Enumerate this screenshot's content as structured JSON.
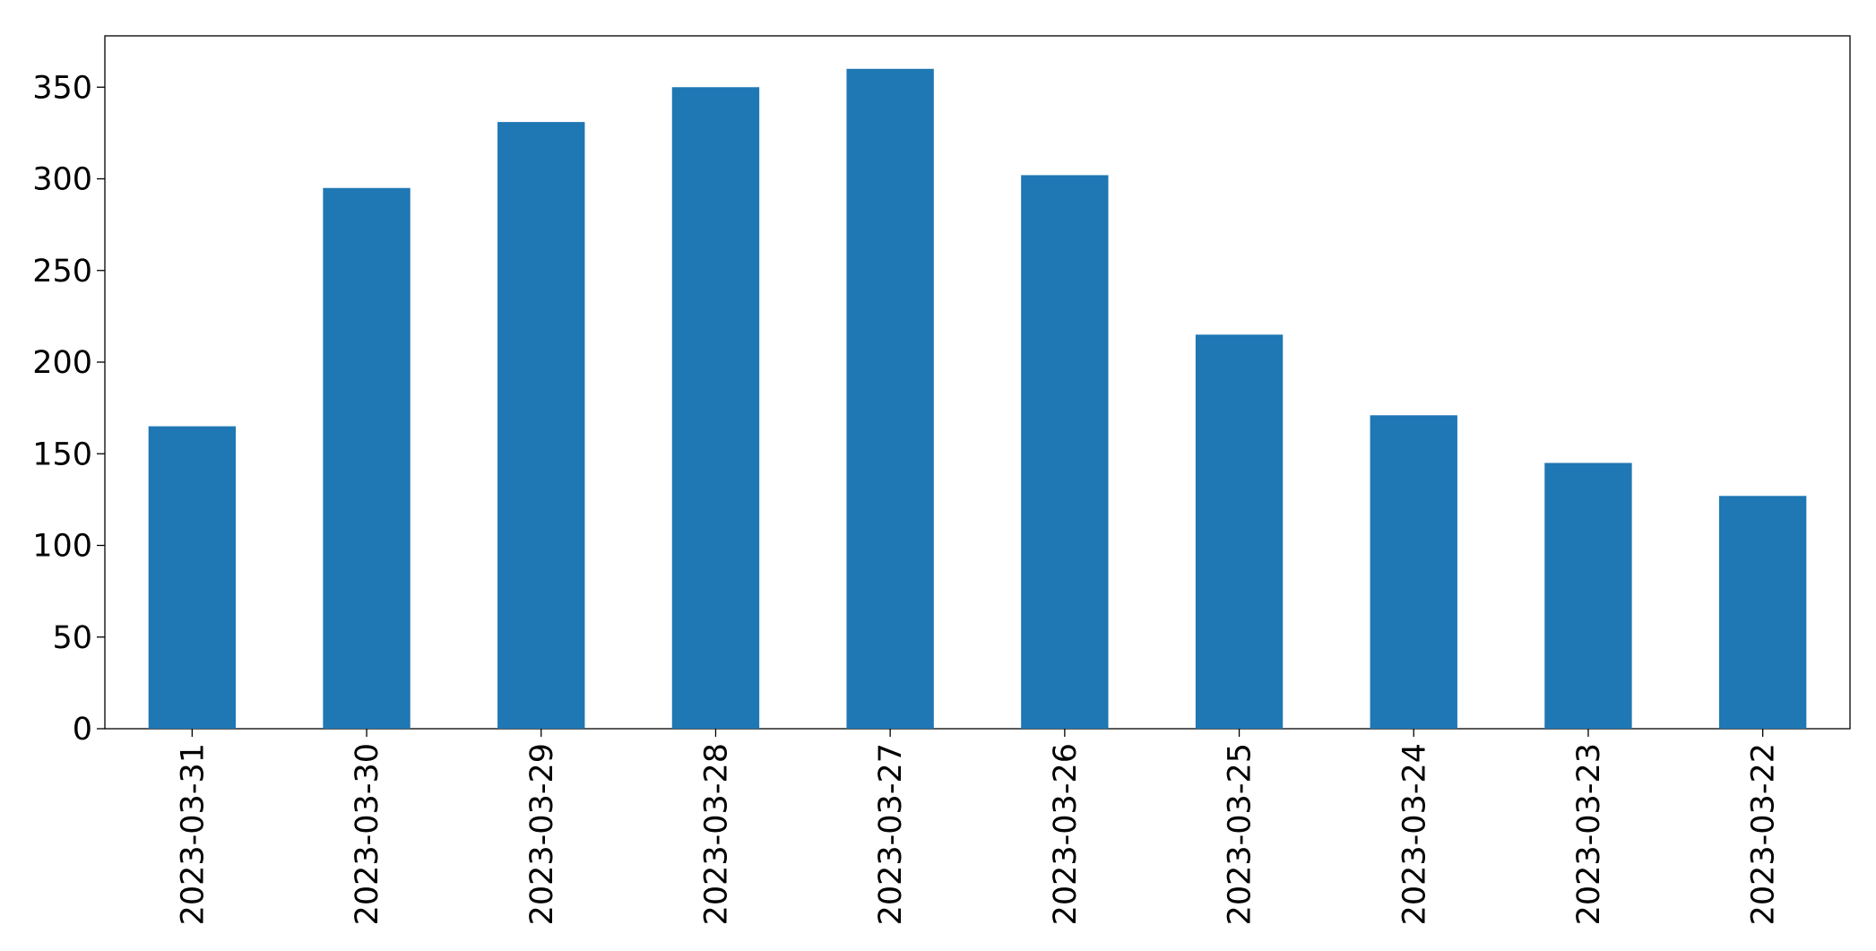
{
  "chart_data": {
    "type": "bar",
    "categories": [
      "2023-03-31",
      "2023-03-30",
      "2023-03-29",
      "2023-03-28",
      "2023-03-27",
      "2023-03-26",
      "2023-03-25",
      "2023-03-24",
      "2023-03-23",
      "2023-03-22"
    ],
    "values": [
      165,
      295,
      331,
      350,
      360,
      302,
      215,
      171,
      145,
      127
    ],
    "color": "#1f77b4",
    "ylim": [
      0,
      378
    ],
    "yticks": [
      0,
      50,
      100,
      150,
      200,
      250,
      300,
      350
    ],
    "grid": false
  }
}
